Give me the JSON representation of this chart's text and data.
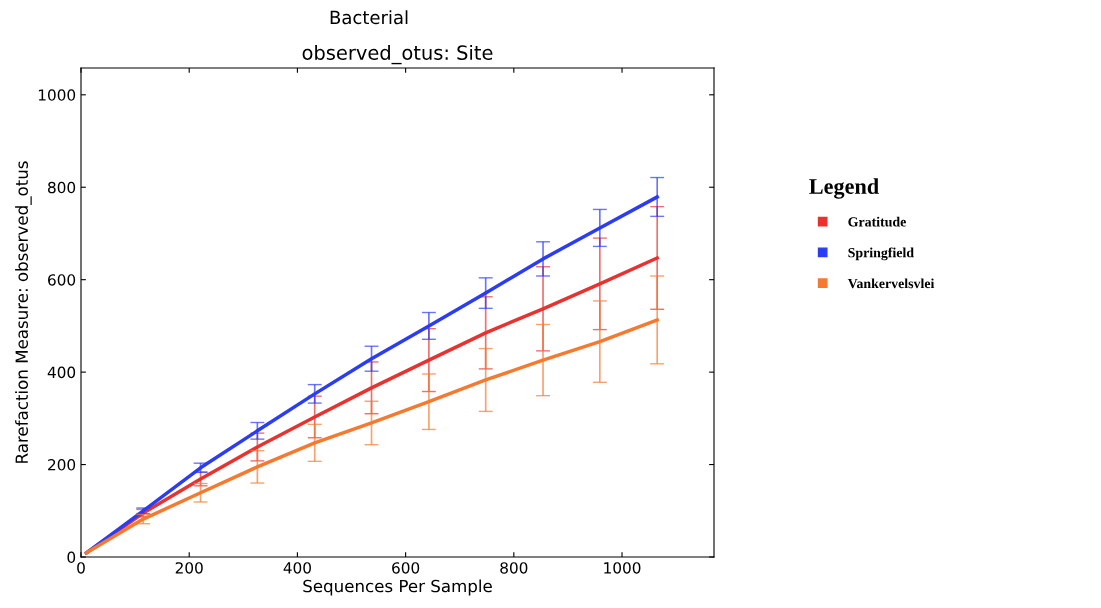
{
  "chart_data": {
    "type": "line",
    "title": "Bacterial",
    "subtitle": "observed_otus: Site",
    "xlabel": "Sequences Per Sample",
    "ylabel": "Rarefaction Measure: observed_otus",
    "legend_title": "Legend",
    "legend": "right",
    "grid": false,
    "marker": "none",
    "line_style": "solid",
    "x": [
      10,
      115,
      221,
      326,
      432,
      537,
      643,
      748,
      854,
      959,
      1065
    ],
    "xlim": [
      0,
      1170
    ],
    "ylim": [
      0,
      1058
    ],
    "xticks": [
      0,
      200,
      400,
      600,
      800,
      1000
    ],
    "yticks": [
      0,
      200,
      400,
      600,
      800,
      1000
    ],
    "series": [
      {
        "name": "Gratitude",
        "color": "#e8322f",
        "values": [
          9,
          95,
          169,
          238,
          303,
          366,
          426,
          485,
          537,
          591,
          647
        ],
        "errors": [
          null,
          8,
          15,
          30,
          45,
          56,
          68,
          78,
          91,
          99,
          111
        ]
      },
      {
        "name": "Springfield",
        "color": "#2b3cf5",
        "values": [
          9,
          100,
          193,
          273,
          353,
          429,
          500,
          571,
          645,
          712,
          779
        ],
        "errors": [
          null,
          6,
          10,
          18,
          20,
          27,
          29,
          33,
          37,
          40,
          42
        ]
      },
      {
        "name": "Vankervelsvlei",
        "color": "#f57a30",
        "values": [
          9,
          82,
          139,
          195,
          247,
          290,
          336,
          383,
          426,
          466,
          513
        ],
        "errors": [
          null,
          10,
          20,
          35,
          40,
          47,
          60,
          68,
          77,
          88,
          95
        ]
      }
    ]
  }
}
